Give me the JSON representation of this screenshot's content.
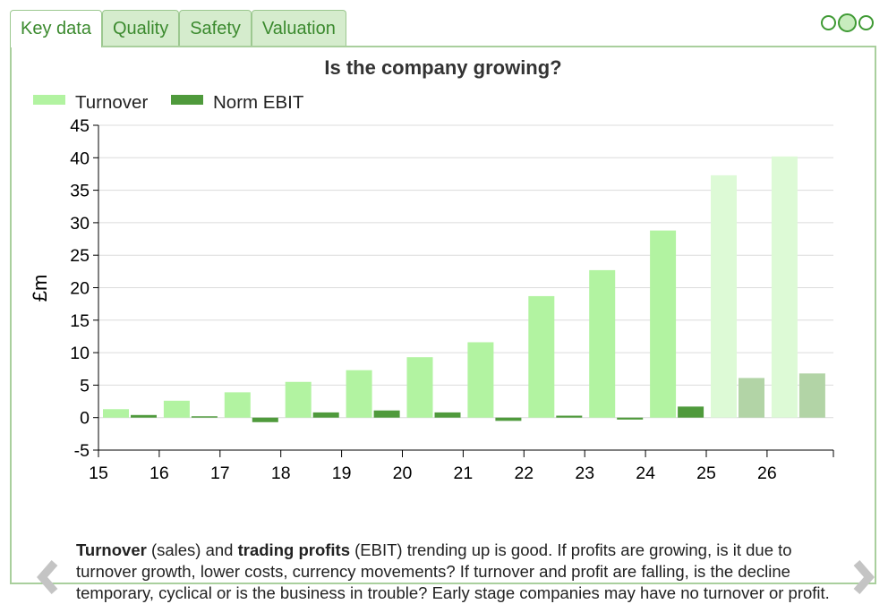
{
  "tabs": [
    {
      "label": "Key data",
      "active": true
    },
    {
      "label": "Quality",
      "active": false
    },
    {
      "label": "Safety",
      "active": false
    },
    {
      "label": "Valuation",
      "active": false
    }
  ],
  "pager": {
    "count": 3,
    "active_index": 1
  },
  "caption": {
    "term1": "Turnover",
    "text1": " (sales) and ",
    "term2": "trading profits",
    "text2": " (EBIT) trending up is good. If profits are growing, is it due to turnover growth, lower costs, currency movements? If turnover and profit are falling, is the decline temporary, cyclical or is the business in trouble? Early stage companies may have no turnover or profit."
  },
  "chart_data": {
    "type": "bar",
    "title": "Is the company growing?",
    "ylabel": "£m",
    "xlabel": "",
    "ylim": [
      -5,
      45
    ],
    "yticks": [
      -5,
      0,
      5,
      10,
      15,
      20,
      25,
      30,
      35,
      40,
      45
    ],
    "categories": [
      "15",
      "16",
      "17",
      "18",
      "19",
      "20",
      "21",
      "22",
      "23",
      "24",
      "25",
      "26"
    ],
    "forecast_categories": [
      "25",
      "26"
    ],
    "grid": true,
    "legend_position": "top-left",
    "series": [
      {
        "name": "Turnover",
        "color": "#b2f3a1",
        "forecast_color": "#ddfad6",
        "values": [
          1.3,
          2.6,
          3.9,
          5.5,
          7.3,
          9.3,
          11.6,
          18.7,
          22.7,
          28.8,
          37.3,
          40.2
        ]
      },
      {
        "name": "Norm EBIT",
        "color": "#4f9a3c",
        "forecast_color": "#b2d4a6",
        "values": [
          0.4,
          0.2,
          -0.7,
          0.8,
          1.1,
          0.8,
          -0.5,
          0.3,
          -0.3,
          1.7,
          6.1,
          6.8
        ]
      }
    ]
  }
}
